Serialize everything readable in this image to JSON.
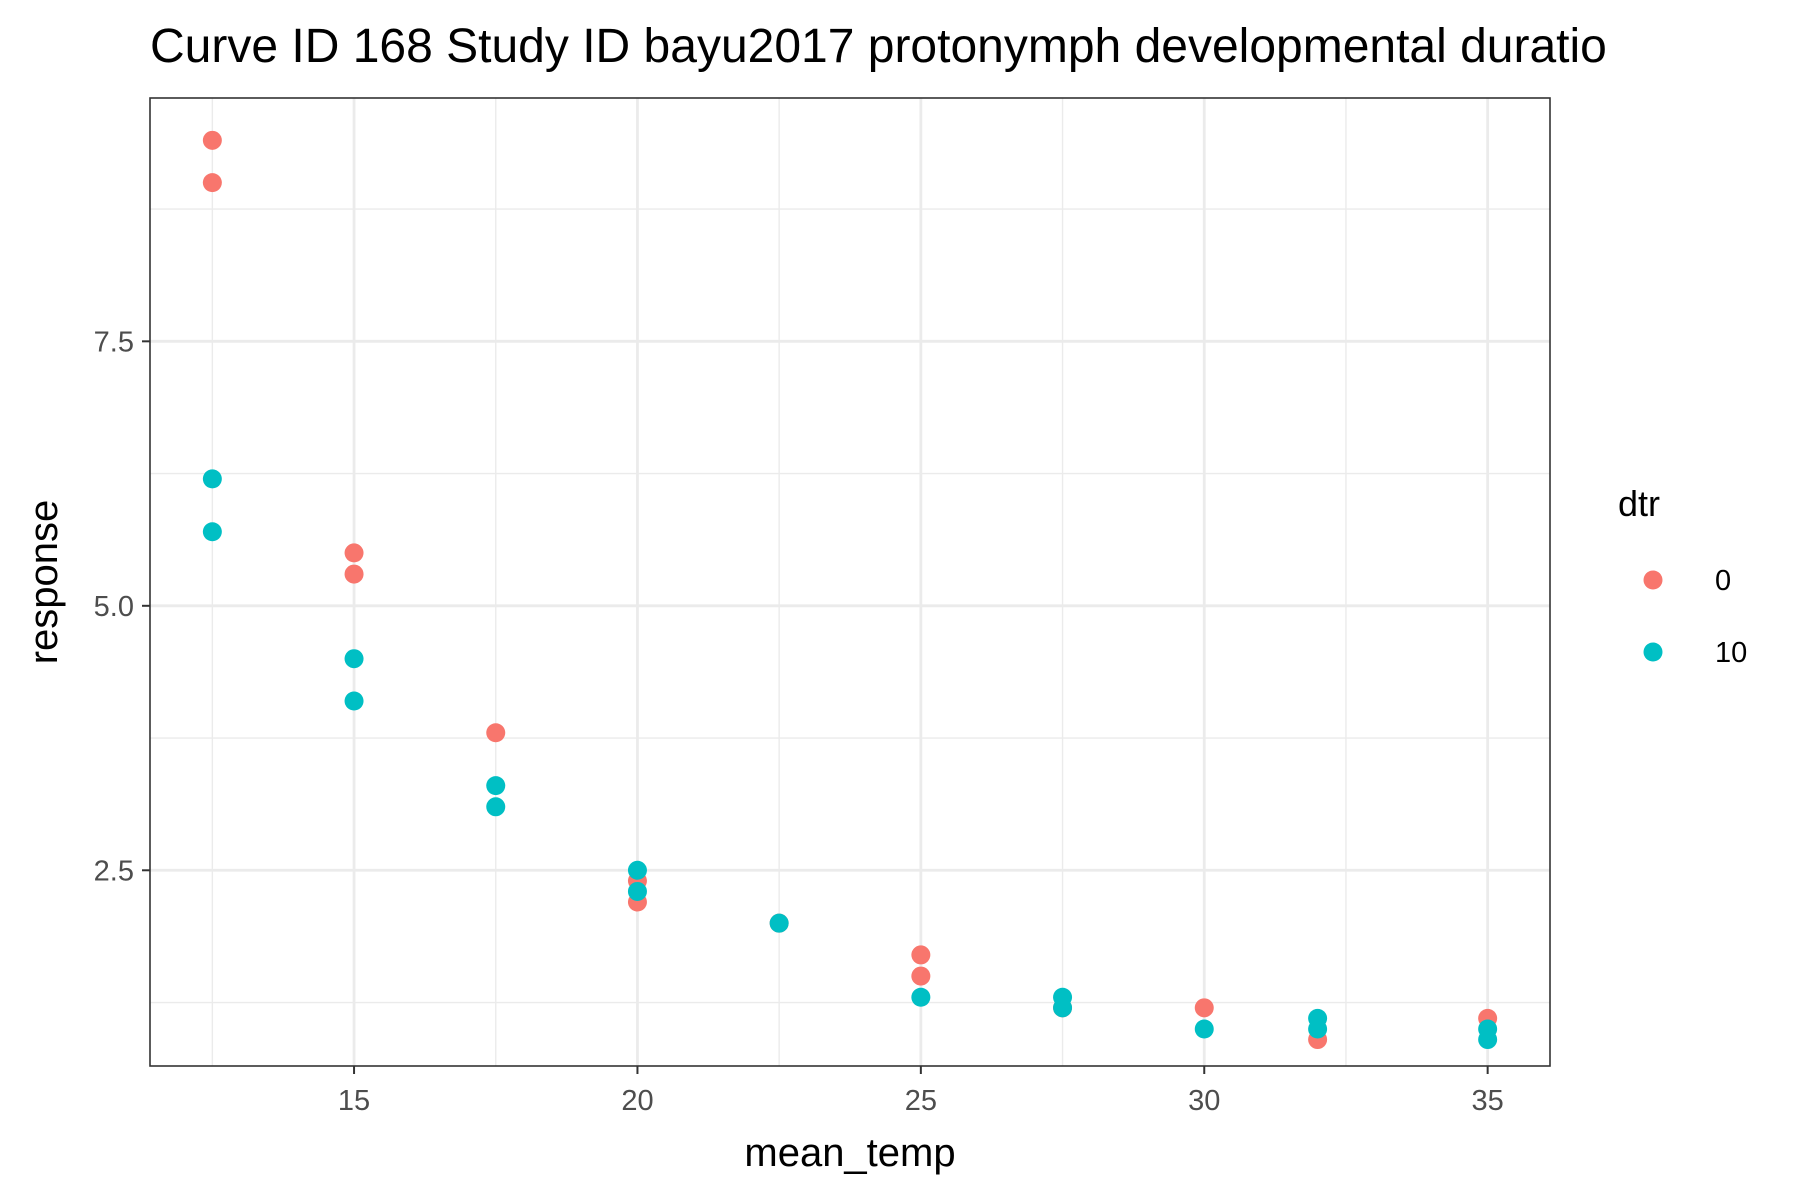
{
  "chart_data": {
    "type": "scatter",
    "title": "Curve ID 168 Study ID bayu2017 protonymph developmental duratio",
    "xlabel": "mean_temp",
    "ylabel": "response",
    "xlim": [
      11.4,
      36.1
    ],
    "ylim": [
      0.65,
      9.8
    ],
    "x_ticks": [
      15,
      20,
      25,
      30,
      35
    ],
    "x_tick_labels": [
      "15",
      "20",
      "25",
      "30",
      "35"
    ],
    "y_ticks": [
      2.5,
      5.0,
      7.5
    ],
    "y_tick_labels": [
      "2.5",
      "5.0",
      "7.5"
    ],
    "grid": true,
    "legend": {
      "title": "dtr",
      "position": "right"
    },
    "series": [
      {
        "name": "0",
        "color": "#F8766D",
        "points": [
          [
            12.5,
            9.4
          ],
          [
            12.5,
            9.0
          ],
          [
            15,
            5.5
          ],
          [
            15,
            5.3
          ],
          [
            17.5,
            3.8
          ],
          [
            20,
            2.4
          ],
          [
            20,
            2.2
          ],
          [
            22.5,
            2.0
          ],
          [
            25,
            1.7
          ],
          [
            25,
            1.5
          ],
          [
            27.5,
            1.2
          ],
          [
            30,
            1.2
          ],
          [
            32,
            0.9
          ],
          [
            35,
            1.1
          ]
        ]
      },
      {
        "name": "10",
        "color": "#00BFC4",
        "points": [
          [
            12.5,
            6.2
          ],
          [
            12.5,
            5.7
          ],
          [
            15,
            4.5
          ],
          [
            15,
            4.1
          ],
          [
            17.5,
            3.3
          ],
          [
            17.5,
            3.1
          ],
          [
            20,
            2.5
          ],
          [
            20,
            2.3
          ],
          [
            22.5,
            2.0
          ],
          [
            25,
            1.3
          ],
          [
            27.5,
            1.3
          ],
          [
            27.5,
            1.2
          ],
          [
            30,
            1.0
          ],
          [
            32,
            1.1
          ],
          [
            32,
            1.0
          ],
          [
            35,
            1.0
          ],
          [
            35,
            0.9
          ]
        ]
      }
    ]
  }
}
